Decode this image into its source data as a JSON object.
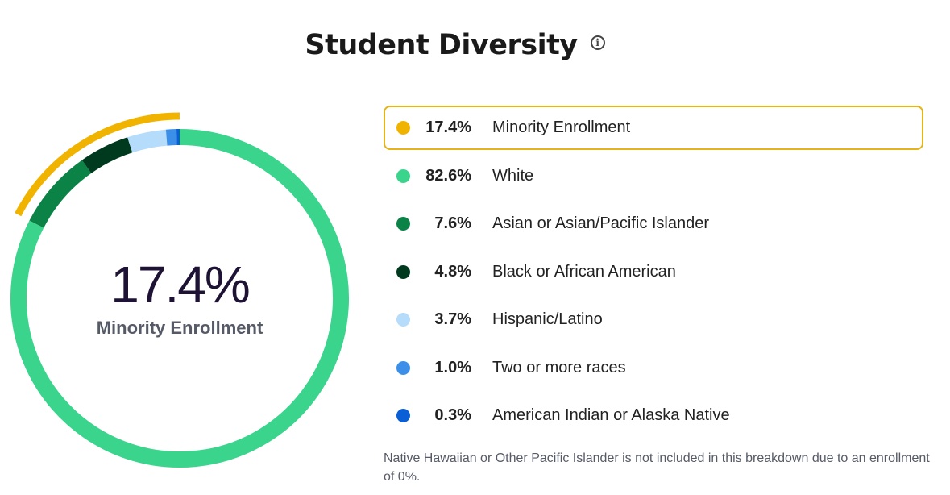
{
  "title": "Student Diversity",
  "info_icon": "info-icon",
  "center": {
    "value": "17.4%",
    "label": "Minority Enrollment"
  },
  "legend": [
    {
      "pct": "17.4%",
      "label": "Minority Enrollment",
      "color": "#f0b400",
      "active": true
    },
    {
      "pct": "82.6%",
      "label": "White",
      "color": "#3ad48c"
    },
    {
      "pct": "7.6%",
      "label": "Asian or Asian/Pacific Islander",
      "color": "#0b8346"
    },
    {
      "pct": "4.8%",
      "label": "Black or African American",
      "color": "#003a1e"
    },
    {
      "pct": "3.7%",
      "label": "Hispanic/Latino",
      "color": "#b5dcfa"
    },
    {
      "pct": "1.0%",
      "label": "Two or more races",
      "color": "#3b8fe8"
    },
    {
      "pct": "0.3%",
      "label": "American Indian or Alaska Native",
      "color": "#0a5fd6"
    }
  ],
  "footnote": "Native Hawaiian or Other Pacific Islander is not included in this breakdown due to an enrollment of 0%.",
  "chart_data": {
    "type": "pie",
    "categories": [
      "White",
      "Asian or Asian/Pacific Islander",
      "Black or African American",
      "Hispanic/Latino",
      "Two or more races",
      "American Indian or Alaska Native"
    ],
    "values": [
      82.6,
      7.6,
      4.8,
      3.7,
      1.0,
      0.3
    ],
    "colors": [
      "#3ad48c",
      "#0b8346",
      "#003a1e",
      "#b5dcfa",
      "#3b8fe8",
      "#0a5fd6"
    ],
    "highlight": {
      "label": "Minority Enrollment",
      "value": 17.4,
      "color": "#f0b400"
    }
  }
}
